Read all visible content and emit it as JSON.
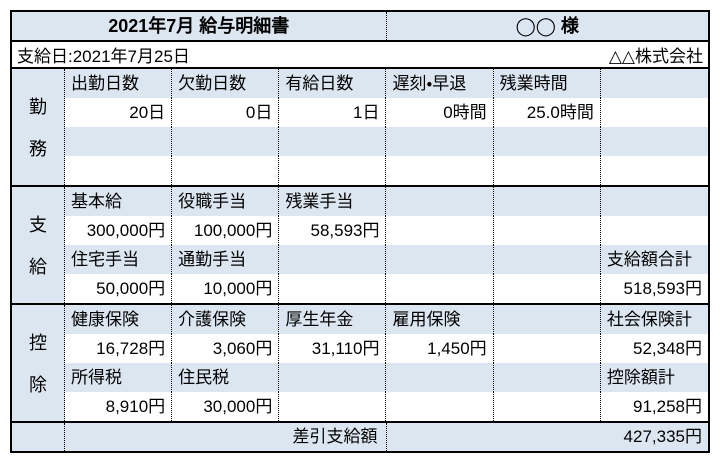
{
  "header": {
    "title": "2021年7月 給与明細書",
    "recipient": "◯◯ 様",
    "pay_date": "支給日:2021年7月25日",
    "company": "△△株式会社"
  },
  "colors": {
    "band_blue": "#dce6f1",
    "border": "#000000",
    "background": "#ffffff"
  },
  "sections": [
    {
      "id": "kinmu",
      "label": "勤務",
      "label_chars": [
        "勤",
        "務"
      ],
      "rows": [
        {
          "kind": "labels",
          "cells": [
            "出勤日数",
            "欠勤日数",
            "有給日数",
            "遅刻・早退",
            "残業時間",
            ""
          ]
        },
        {
          "kind": "values",
          "cells": [
            "20日",
            "0日",
            "1日",
            "0時間",
            "25.0時間",
            ""
          ]
        },
        {
          "kind": "labels",
          "cells": [
            "",
            "",
            "",
            "",
            "",
            ""
          ]
        },
        {
          "kind": "values",
          "cells": [
            "",
            "",
            "",
            "",
            "",
            ""
          ]
        }
      ]
    },
    {
      "id": "shikyu",
      "label": "支給",
      "label_chars": [
        "支",
        "給"
      ],
      "rows": [
        {
          "kind": "labels",
          "cells": [
            "基本給",
            "役職手当",
            "残業手当",
            "",
            "",
            ""
          ]
        },
        {
          "kind": "values",
          "cells": [
            "300,000円",
            "100,000円",
            "58,593円",
            "",
            "",
            ""
          ]
        },
        {
          "kind": "labels",
          "cells": [
            "住宅手当",
            "通勤手当",
            "",
            "",
            "",
            "支給額合計"
          ]
        },
        {
          "kind": "values",
          "cells": [
            "50,000円",
            "10,000円",
            "",
            "",
            "",
            "518,593円"
          ]
        }
      ]
    },
    {
      "id": "kojo",
      "label": "控除",
      "label_chars": [
        "控",
        "除"
      ],
      "rows": [
        {
          "kind": "labels",
          "cells": [
            "健康保険",
            "介護保険",
            "厚生年金",
            "雇用保険",
            "",
            "社会保険計"
          ]
        },
        {
          "kind": "values",
          "cells": [
            "16,728円",
            "3,060円",
            "31,110円",
            "1,450円",
            "",
            "52,348円"
          ]
        },
        {
          "kind": "labels",
          "cells": [
            "所得税",
            "住民税",
            "",
            "",
            "",
            "控除額計"
          ]
        },
        {
          "kind": "values",
          "cells": [
            "8,910円",
            "30,000円",
            "",
            "",
            "",
            "91,258円"
          ]
        }
      ]
    }
  ],
  "footer": {
    "net_pay_label": "差引支給額",
    "net_pay_value": "427,335円"
  }
}
